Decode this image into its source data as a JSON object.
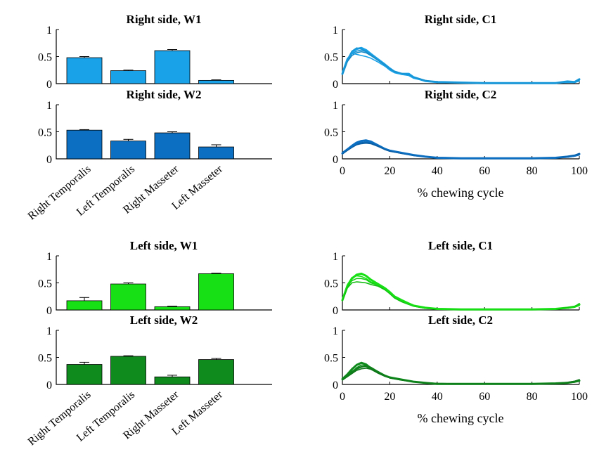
{
  "colors": {
    "right_w1": "#1aa2e8",
    "right_w2": "#0c6fc1",
    "left_w1": "#17e014",
    "left_w2": "#0f8a1c",
    "right_c1": "#1aa2e8",
    "right_c2": "#0c6fc1",
    "left_c1": "#17e014",
    "left_c2": "#0f8a1c"
  },
  "chart_data": [
    {
      "id": "right_w1",
      "type": "bar",
      "title": "Right side, W1",
      "categories": [
        "Right Temporalis",
        "Left Temporalis",
        "Right Masseter",
        "Left Masseter"
      ],
      "values": [
        0.48,
        0.24,
        0.61,
        0.06
      ],
      "errors": [
        0.02,
        0.01,
        0.02,
        0.01
      ],
      "ylim": [
        0,
        1
      ],
      "yticks": [
        "0",
        "0.5",
        "1"
      ],
      "show_category_labels": false
    },
    {
      "id": "right_w2",
      "type": "bar",
      "title": "Right side, W2",
      "categories": [
        "Right Temporalis",
        "Left Temporalis",
        "Right Masseter",
        "Left Masseter"
      ],
      "values": [
        0.53,
        0.33,
        0.48,
        0.22
      ],
      "errors": [
        0.01,
        0.03,
        0.02,
        0.04
      ],
      "ylim": [
        0,
        1
      ],
      "yticks": [
        "0",
        "0.5",
        "1"
      ],
      "show_category_labels": true
    },
    {
      "id": "left_w1",
      "type": "bar",
      "title": "Left side, W1",
      "categories": [
        "Right Temporalis",
        "Left Temporalis",
        "Right Masseter",
        "Left Masseter"
      ],
      "values": [
        0.17,
        0.48,
        0.06,
        0.67
      ],
      "errors": [
        0.06,
        0.02,
        0.01,
        0.01
      ],
      "ylim": [
        0,
        1
      ],
      "yticks": [
        "0",
        "0.5",
        "1"
      ],
      "show_category_labels": false
    },
    {
      "id": "left_w2",
      "type": "bar",
      "title": "Left side, W2",
      "categories": [
        "Right Temporalis",
        "Left Temporalis",
        "Right Masseter",
        "Left Masseter"
      ],
      "values": [
        0.37,
        0.52,
        0.14,
        0.46
      ],
      "errors": [
        0.04,
        0.01,
        0.03,
        0.02
      ],
      "ylim": [
        0,
        1
      ],
      "yticks": [
        "0",
        "0.5",
        "1"
      ],
      "show_category_labels": true
    },
    {
      "id": "right_c1",
      "type": "line",
      "title": "Right side, C1",
      "xlabel": "",
      "xlim": [
        0,
        100
      ],
      "ylim": [
        0,
        1
      ],
      "yticks": [
        "0",
        "0.5",
        "1"
      ],
      "xticks": [],
      "x": [
        0,
        2,
        4,
        6,
        8,
        10,
        12,
        15,
        18,
        20,
        22,
        25,
        28,
        30,
        35,
        40,
        50,
        60,
        70,
        80,
        90,
        95,
        98,
        100
      ],
      "series": [
        {
          "values": [
            0.18,
            0.42,
            0.58,
            0.64,
            0.66,
            0.62,
            0.55,
            0.45,
            0.35,
            0.28,
            0.22,
            0.18,
            0.18,
            0.12,
            0.05,
            0.03,
            0.02,
            0.01,
            0.01,
            0.01,
            0.01,
            0.04,
            0.03,
            0.08
          ]
        },
        {
          "values": [
            0.2,
            0.45,
            0.55,
            0.6,
            0.62,
            0.59,
            0.53,
            0.44,
            0.34,
            0.27,
            0.21,
            0.17,
            0.16,
            0.11,
            0.05,
            0.03,
            0.02,
            0.01,
            0.01,
            0.01,
            0.01,
            0.03,
            0.02,
            0.06
          ]
        },
        {
          "values": [
            0.17,
            0.4,
            0.52,
            0.57,
            0.59,
            0.57,
            0.52,
            0.43,
            0.34,
            0.26,
            0.21,
            0.18,
            0.17,
            0.12,
            0.06,
            0.03,
            0.02,
            0.01,
            0.01,
            0.01,
            0.01,
            0.03,
            0.02,
            0.07
          ]
        },
        {
          "values": [
            0.22,
            0.46,
            0.56,
            0.54,
            0.52,
            0.5,
            0.47,
            0.4,
            0.32,
            0.25,
            0.2,
            0.17,
            0.15,
            0.1,
            0.05,
            0.02,
            0.02,
            0.01,
            0.01,
            0.01,
            0.01,
            0.02,
            0.02,
            0.05
          ]
        },
        {
          "values": [
            0.19,
            0.43,
            0.6,
            0.66,
            0.64,
            0.6,
            0.54,
            0.44,
            0.35,
            0.28,
            0.23,
            0.19,
            0.17,
            0.12,
            0.05,
            0.03,
            0.02,
            0.01,
            0.01,
            0.01,
            0.01,
            0.04,
            0.03,
            0.09
          ]
        }
      ]
    },
    {
      "id": "right_c2",
      "type": "line",
      "title": "Right side, C2",
      "xlabel": "% chewing cycle",
      "xlim": [
        0,
        100
      ],
      "ylim": [
        0,
        1
      ],
      "yticks": [
        "0",
        "0.5",
        "1"
      ],
      "xticks": [
        "0",
        "20",
        "40",
        "60",
        "80",
        "100"
      ],
      "x": [
        0,
        2,
        4,
        6,
        8,
        10,
        12,
        15,
        18,
        20,
        25,
        30,
        35,
        40,
        50,
        60,
        70,
        80,
        90,
        95,
        98,
        100
      ],
      "series": [
        {
          "values": [
            0.1,
            0.17,
            0.24,
            0.3,
            0.33,
            0.34,
            0.31,
            0.25,
            0.18,
            0.15,
            0.11,
            0.07,
            0.04,
            0.02,
            0.01,
            0.01,
            0.01,
            0.01,
            0.02,
            0.04,
            0.06,
            0.09
          ]
        },
        {
          "values": [
            0.12,
            0.18,
            0.22,
            0.27,
            0.3,
            0.31,
            0.29,
            0.24,
            0.18,
            0.15,
            0.1,
            0.06,
            0.04,
            0.02,
            0.01,
            0.01,
            0.01,
            0.01,
            0.02,
            0.03,
            0.05,
            0.08
          ]
        },
        {
          "values": [
            0.09,
            0.15,
            0.21,
            0.26,
            0.28,
            0.29,
            0.28,
            0.23,
            0.17,
            0.14,
            0.1,
            0.07,
            0.04,
            0.02,
            0.01,
            0.01,
            0.01,
            0.01,
            0.02,
            0.04,
            0.06,
            0.1
          ]
        },
        {
          "values": [
            0.11,
            0.17,
            0.23,
            0.28,
            0.32,
            0.35,
            0.33,
            0.26,
            0.19,
            0.16,
            0.11,
            0.07,
            0.04,
            0.02,
            0.01,
            0.01,
            0.01,
            0.01,
            0.02,
            0.03,
            0.05,
            0.07
          ]
        }
      ]
    },
    {
      "id": "left_c1",
      "type": "line",
      "title": "Left side, C1",
      "xlabel": "",
      "xlim": [
        0,
        100
      ],
      "ylim": [
        0,
        1
      ],
      "yticks": [
        "0",
        "0.5",
        "1"
      ],
      "xticks": [],
      "x": [
        0,
        2,
        4,
        6,
        8,
        10,
        12,
        15,
        18,
        20,
        22,
        25,
        28,
        30,
        35,
        40,
        50,
        60,
        70,
        80,
        90,
        95,
        98,
        100
      ],
      "series": [
        {
          "values": [
            0.18,
            0.42,
            0.58,
            0.65,
            0.67,
            0.63,
            0.56,
            0.48,
            0.4,
            0.33,
            0.25,
            0.18,
            0.12,
            0.08,
            0.04,
            0.02,
            0.01,
            0.01,
            0.01,
            0.01,
            0.02,
            0.04,
            0.06,
            0.1
          ]
        },
        {
          "values": [
            0.2,
            0.44,
            0.54,
            0.58,
            0.58,
            0.56,
            0.5,
            0.46,
            0.38,
            0.31,
            0.23,
            0.16,
            0.11,
            0.07,
            0.03,
            0.02,
            0.01,
            0.01,
            0.01,
            0.01,
            0.02,
            0.03,
            0.05,
            0.08
          ]
        },
        {
          "values": [
            0.17,
            0.4,
            0.5,
            0.52,
            0.51,
            0.5,
            0.47,
            0.44,
            0.37,
            0.3,
            0.22,
            0.15,
            0.1,
            0.07,
            0.03,
            0.02,
            0.01,
            0.01,
            0.01,
            0.01,
            0.02,
            0.04,
            0.06,
            0.12
          ]
        },
        {
          "values": [
            0.21,
            0.46,
            0.6,
            0.63,
            0.62,
            0.58,
            0.52,
            0.47,
            0.39,
            0.32,
            0.24,
            0.17,
            0.11,
            0.08,
            0.03,
            0.02,
            0.01,
            0.01,
            0.01,
            0.01,
            0.02,
            0.03,
            0.05,
            0.09
          ]
        }
      ]
    },
    {
      "id": "left_c2",
      "type": "line",
      "title": "Left side, C2",
      "xlabel": "% chewing cycle",
      "xlim": [
        0,
        100
      ],
      "ylim": [
        0,
        1
      ],
      "yticks": [
        "0",
        "0.5",
        "1"
      ],
      "xticks": [
        "0",
        "20",
        "40",
        "60",
        "80",
        "100"
      ],
      "x": [
        0,
        2,
        4,
        6,
        8,
        10,
        12,
        15,
        18,
        20,
        25,
        30,
        35,
        40,
        50,
        60,
        70,
        80,
        90,
        95,
        98,
        100
      ],
      "series": [
        {
          "values": [
            0.1,
            0.18,
            0.28,
            0.36,
            0.4,
            0.37,
            0.3,
            0.22,
            0.16,
            0.13,
            0.09,
            0.05,
            0.03,
            0.01,
            0.01,
            0.01,
            0.01,
            0.01,
            0.02,
            0.03,
            0.05,
            0.07
          ]
        },
        {
          "values": [
            0.12,
            0.17,
            0.24,
            0.3,
            0.33,
            0.33,
            0.29,
            0.22,
            0.16,
            0.12,
            0.08,
            0.05,
            0.03,
            0.01,
            0.01,
            0.01,
            0.01,
            0.01,
            0.02,
            0.03,
            0.05,
            0.06
          ]
        },
        {
          "values": [
            0.08,
            0.14,
            0.2,
            0.26,
            0.29,
            0.3,
            0.28,
            0.21,
            0.15,
            0.12,
            0.08,
            0.05,
            0.03,
            0.02,
            0.01,
            0.01,
            0.01,
            0.01,
            0.02,
            0.04,
            0.06,
            0.09
          ]
        },
        {
          "values": [
            0.11,
            0.16,
            0.23,
            0.31,
            0.36,
            0.35,
            0.31,
            0.24,
            0.17,
            0.13,
            0.09,
            0.05,
            0.03,
            0.01,
            0.01,
            0.01,
            0.01,
            0.01,
            0.02,
            0.03,
            0.04,
            0.06
          ]
        },
        {
          "values": [
            0.09,
            0.15,
            0.22,
            0.28,
            0.32,
            0.34,
            0.32,
            0.24,
            0.16,
            0.12,
            0.08,
            0.05,
            0.03,
            0.02,
            0.01,
            0.01,
            0.01,
            0.01,
            0.02,
            0.03,
            0.05,
            0.08
          ]
        }
      ]
    }
  ]
}
